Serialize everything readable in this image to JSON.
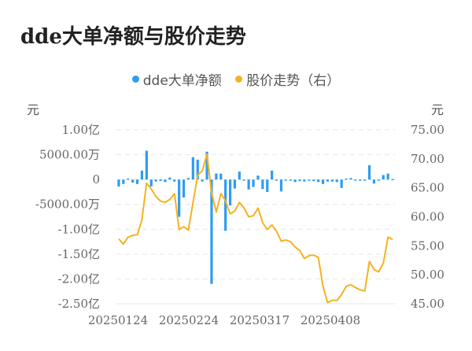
{
  "title": "dde大单净额与股价走势",
  "legend": [
    {
      "label": "dde大单净额",
      "color": "#2f9cf0"
    },
    {
      "label": "股价走势（右）",
      "color": "#f5b21f"
    }
  ],
  "left_unit": "元",
  "right_unit": "元",
  "colors": {
    "bar": "#2f9cf0",
    "line": "#f5b21f",
    "grid": "#e6e6e6",
    "text": "#666666"
  },
  "chart_data": {
    "type": "bar+line",
    "title": "dde大单净额与股价走势",
    "legend_position": "top",
    "grid": true,
    "x_tick_labels": [
      "20250124",
      "20250224",
      "20250317",
      "20250408"
    ],
    "y_left": {
      "label": "元",
      "ticks": [
        "1.00亿",
        "5000.00万",
        "0",
        "-5000.00万",
        "-1.00亿",
        "-1.50亿",
        "-2.00亿",
        "-2.50亿"
      ],
      "tick_values": [
        100000000,
        50000000,
        0,
        -50000000,
        -100000000,
        -150000000,
        -200000000,
        -250000000
      ],
      "range": [
        -250000000,
        100000000
      ]
    },
    "y_right": {
      "label": "元",
      "ticks": [
        "75.00",
        "70.00",
        "65.00",
        "60.00",
        "55.00",
        "50.00",
        "45.00"
      ],
      "tick_values": [
        75,
        70,
        65,
        60,
        55,
        50,
        45
      ],
      "range": [
        45,
        75
      ]
    },
    "series": [
      {
        "name": "dde大单净额",
        "type": "bar",
        "axis": "left",
        "values": [
          -14000000,
          -9000000,
          2000000,
          -6000000,
          -9000000,
          18000000,
          58000000,
          -14000000,
          -4000000,
          -3000000,
          -5000000,
          4000000,
          -4000000,
          -75000000,
          -36000000,
          3000000,
          45000000,
          40000000,
          -4000000,
          56000000,
          -210000000,
          12000000,
          12000000,
          -103000000,
          -52000000,
          -18000000,
          16000000,
          -2000000,
          -20000000,
          -15000000,
          8000000,
          -19000000,
          -25000000,
          18000000,
          -2000000,
          -24000000,
          -1000000,
          -2000000,
          -5000000,
          -3000000,
          -4000000,
          -2000000,
          -3000000,
          -5000000,
          -9000000,
          -4000000,
          -4000000,
          -5000000,
          -17000000,
          2000000,
          3000000,
          -1000000,
          -2000000,
          -2000000,
          29000000,
          -8000000,
          -1000000,
          9000000,
          12000000,
          1000000
        ]
      },
      {
        "name": "股价走势",
        "type": "line",
        "axis": "right",
        "values": [
          56.2,
          55.3,
          56.5,
          56.8,
          56.9,
          59.5,
          65.8,
          64.8,
          63.5,
          62.7,
          62.5,
          63.0,
          64.0,
          57.8,
          58.3,
          57.7,
          62.5,
          67.2,
          67.9,
          70.8,
          64.2,
          60.8,
          64.0,
          62.8,
          60.5,
          61.0,
          62.5,
          61.5,
          60.0,
          60.2,
          61.5,
          59.0,
          57.8,
          58.6,
          57.5,
          55.8,
          56.0,
          55.7,
          54.8,
          54.2,
          52.8,
          53.3,
          53.4,
          53.0,
          48.0,
          45.2,
          45.6,
          45.6,
          46.6,
          48.0,
          48.3,
          47.8,
          47.4,
          47.2,
          52.3,
          50.9,
          50.5,
          52.0,
          56.5,
          56.1
        ]
      }
    ]
  }
}
